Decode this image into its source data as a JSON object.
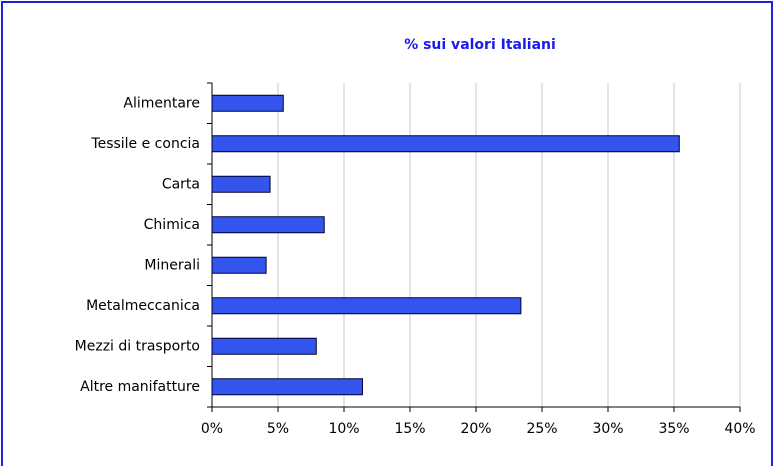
{
  "chart_data": {
    "type": "bar",
    "orientation": "horizontal",
    "title": "% sui valori Italiani",
    "categories": [
      "Alimentare",
      "Tessile e concia",
      "Carta",
      "Chimica",
      "Minerali",
      "Metalmeccanica",
      "Mezzi di trasporto",
      "Altre manifatture"
    ],
    "values": [
      5.4,
      35.4,
      4.4,
      8.5,
      4.1,
      23.4,
      7.9,
      11.4
    ],
    "color": "#3355ee",
    "xlim": [
      0,
      40
    ],
    "xticks": [
      {
        "value": 0,
        "label": "0%"
      },
      {
        "value": 5,
        "label": "5%"
      },
      {
        "value": 10,
        "label": "10%"
      },
      {
        "value": 15,
        "label": "15%"
      },
      {
        "value": 20,
        "label": "20%"
      },
      {
        "value": 25,
        "label": "25%"
      },
      {
        "value": 30,
        "label": "30%"
      },
      {
        "value": 35,
        "label": "35%"
      },
      {
        "value": 40,
        "label": "40%"
      }
    ],
    "grid": true
  }
}
